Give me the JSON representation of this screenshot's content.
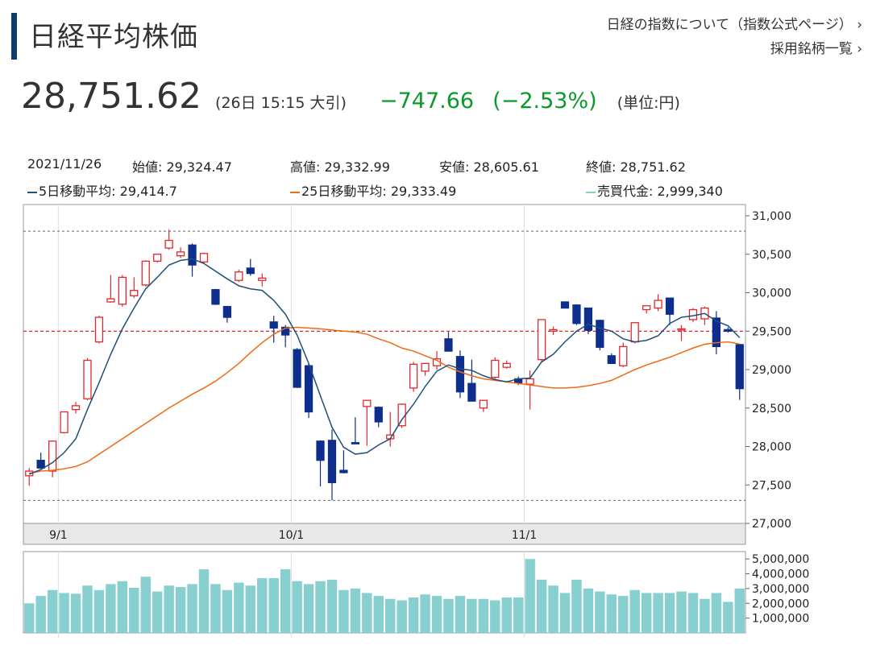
{
  "header": {
    "title": "日経平均株価",
    "link_index": "日経の指数について（指数公式ページ）",
    "link_index_arrow": "›",
    "link_components": "採用銘柄一覧",
    "link_components_arrow": "›"
  },
  "quote": {
    "price": "28,751.62",
    "note": "(26日 15:15 大引)",
    "change": "−747.66",
    "change_pct": "(−2.53%)",
    "unit": "(単位:円)",
    "change_color": "#0b9a2a"
  },
  "info": {
    "date": "2021/11/26",
    "open": "始値: 29,324.47",
    "high": "高値: 29,332.99",
    "low": "安値: 28,605.61",
    "close": "終値: 28,751.62",
    "ma5": "5日移動平均: 29,414.7",
    "ma25": "25日移動平均: 29,333.49",
    "turnover": "売買代金: 2,999,340"
  },
  "colors": {
    "up": "#e0282e",
    "down": "#0d2e8c",
    "ma5": "#1f4e79",
    "ma25": "#ee6a12",
    "volume": "#88cfcf",
    "prev_close_line": "#e0282e"
  },
  "chart_data": {
    "type": "candlestick",
    "price_axis": {
      "ticks": [
        27000,
        27500,
        28000,
        28500,
        29000,
        29500,
        30000,
        30500,
        31000
      ],
      "tick_labels": [
        "27,000",
        "27,500",
        "28,000",
        "28,500",
        "29,000",
        "29,500",
        "30,000",
        "30,500",
        "31,000"
      ],
      "range": [
        27000,
        31000
      ]
    },
    "volume_axis": {
      "ticks": [
        1000000,
        2000000,
        3000000,
        4000000,
        5000000
      ],
      "tick_labels": [
        "1,000,000",
        "2,000,000",
        "3,000,000",
        "4,000,000",
        "5,000,000"
      ],
      "range": [
        0,
        5500000
      ]
    },
    "x_ticks": [
      {
        "label": "9/1",
        "index": 3
      },
      {
        "label": "10/1",
        "index": 23
      },
      {
        "label": "11/1",
        "index": 43
      }
    ],
    "reference_lines": {
      "period_high": 30800,
      "period_low": 27300,
      "prev_close": 29499
    },
    "ohlc": [
      [
        27620,
        27720,
        27490,
        27680
      ],
      [
        27820,
        27920,
        27720,
        27720
      ],
      [
        27680,
        28080,
        27600,
        28070
      ],
      [
        28180,
        28450,
        28170,
        28450
      ],
      [
        28480,
        28580,
        28430,
        28530
      ],
      [
        28620,
        29150,
        28600,
        29120
      ],
      [
        29360,
        29700,
        29340,
        29680
      ],
      [
        29880,
        30230,
        29870,
        29920
      ],
      [
        29850,
        30230,
        29820,
        30200
      ],
      [
        29960,
        30200,
        29930,
        30030
      ],
      [
        30100,
        30420,
        30080,
        30410
      ],
      [
        30410,
        30500,
        30390,
        30500
      ],
      [
        30580,
        30820,
        30560,
        30680
      ],
      [
        30480,
        30590,
        30450,
        30530
      ],
      [
        30620,
        30640,
        30210,
        30360
      ],
      [
        30400,
        30520,
        30380,
        30510
      ],
      [
        30040,
        30050,
        29840,
        29850
      ],
      [
        29820,
        29830,
        29610,
        29680
      ],
      [
        30160,
        30300,
        30140,
        30270
      ],
      [
        30320,
        30440,
        30220,
        30250
      ],
      [
        30160,
        30250,
        30080,
        30190
      ],
      [
        29620,
        29700,
        29350,
        29540
      ],
      [
        29550,
        29580,
        29290,
        29450
      ],
      [
        29260,
        29280,
        28760,
        28770
      ],
      [
        29050,
        29080,
        28370,
        28450
      ],
      [
        28070,
        28080,
        27480,
        27820
      ],
      [
        28080,
        28220,
        27300,
        27530
      ],
      [
        27690,
        27950,
        27650,
        27660
      ],
      [
        28050,
        28380,
        28040,
        28040
      ],
      [
        28520,
        28580,
        28010,
        28600
      ],
      [
        28510,
        28520,
        28250,
        28320
      ],
      [
        28100,
        28450,
        28000,
        28150
      ],
      [
        28270,
        28560,
        28240,
        28550
      ],
      [
        28760,
        29100,
        28710,
        29070
      ],
      [
        28980,
        29050,
        28920,
        29080
      ],
      [
        29050,
        29240,
        29000,
        29140
      ],
      [
        29400,
        29490,
        29250,
        29240
      ],
      [
        29170,
        29250,
        28630,
        28710
      ],
      [
        28820,
        29130,
        28600,
        28590
      ],
      [
        28500,
        28580,
        28450,
        28600
      ],
      [
        28900,
        29160,
        28880,
        29120
      ],
      [
        29030,
        29120,
        29010,
        29080
      ],
      [
        28880,
        28910,
        28800,
        28830
      ],
      [
        28810,
        28990,
        28480,
        28880
      ],
      [
        29130,
        29650,
        29100,
        29650
      ],
      [
        29500,
        29560,
        29450,
        29520
      ],
      [
        29880,
        29880,
        29800,
        29800
      ],
      [
        29840,
        29850,
        29580,
        29600
      ],
      [
        29800,
        29800,
        29460,
        29510
      ],
      [
        29640,
        29650,
        29250,
        29290
      ],
      [
        29180,
        29210,
        29090,
        29080
      ],
      [
        29050,
        29350,
        29030,
        29300
      ],
      [
        29360,
        29610,
        29340,
        29610
      ],
      [
        29780,
        29820,
        29730,
        29830
      ],
      [
        29800,
        29980,
        29760,
        29900
      ],
      [
        29930,
        29930,
        29580,
        29720
      ],
      [
        29530,
        29580,
        29370,
        29530
      ],
      [
        29650,
        29800,
        29620,
        29780
      ],
      [
        29660,
        29820,
        29580,
        29800
      ],
      [
        29670,
        29760,
        29200,
        29300
      ],
      [
        29520,
        29550,
        29480,
        29500
      ],
      [
        29325,
        29333,
        28606,
        28752
      ]
    ],
    "ma5": [
      27640,
      27700,
      27790,
      27920,
      28100,
      28480,
      28830,
      29200,
      29530,
      29800,
      30050,
      30200,
      30360,
      30420,
      30440,
      30380,
      30280,
      30180,
      30090,
      30050,
      30030,
      29900,
      29720,
      29450,
      29080,
      28660,
      28250,
      27990,
      27900,
      27920,
      28020,
      28100,
      28350,
      28550,
      28780,
      28980,
      29060,
      29010,
      28990,
      28920,
      28870,
      28840,
      28880,
      28890,
      29100,
      29200,
      29360,
      29500,
      29590,
      29540,
      29500,
      29400,
      29360,
      29380,
      29440,
      29600,
      29680,
      29700,
      29730,
      29630,
      29570,
      29415
    ],
    "ma25": [
      27650,
      27680,
      27690,
      27710,
      27740,
      27800,
      27900,
      28000,
      28100,
      28200,
      28300,
      28400,
      28500,
      28590,
      28680,
      28760,
      28850,
      28960,
      29080,
      29220,
      29350,
      29460,
      29540,
      29550,
      29540,
      29530,
      29515,
      29500,
      29490,
      29460,
      29400,
      29350,
      29280,
      29240,
      29180,
      29120,
      29030,
      28970,
      28920,
      28880,
      28860,
      28840,
      28820,
      28800,
      28780,
      28760,
      28760,
      28770,
      28790,
      28820,
      28860,
      28930,
      29000,
      29060,
      29110,
      29160,
      29220,
      29280,
      29330,
      29350,
      29360,
      29333
    ],
    "volume": [
      2000000,
      2500000,
      2900000,
      2700000,
      2650000,
      3200000,
      2900000,
      3300000,
      3500000,
      3050000,
      3800000,
      2800000,
      3200000,
      3100000,
      3300000,
      4300000,
      3300000,
      2900000,
      3400000,
      3200000,
      3700000,
      3700000,
      4300000,
      3500000,
      3300000,
      3500000,
      3600000,
      2900000,
      3000000,
      2700000,
      2500000,
      2300000,
      2200000,
      2400000,
      2600000,
      2500000,
      2300000,
      2500000,
      2300000,
      2300000,
      2200000,
      2400000,
      2400000,
      5000000,
      3600000,
      3200000,
      2700000,
      3600000,
      3000000,
      2800000,
      2600000,
      2500000,
      2900000,
      2700000,
      2700000,
      2700000,
      2800000,
      2700000,
      2300000,
      2700000,
      2100000,
      2999340
    ]
  }
}
